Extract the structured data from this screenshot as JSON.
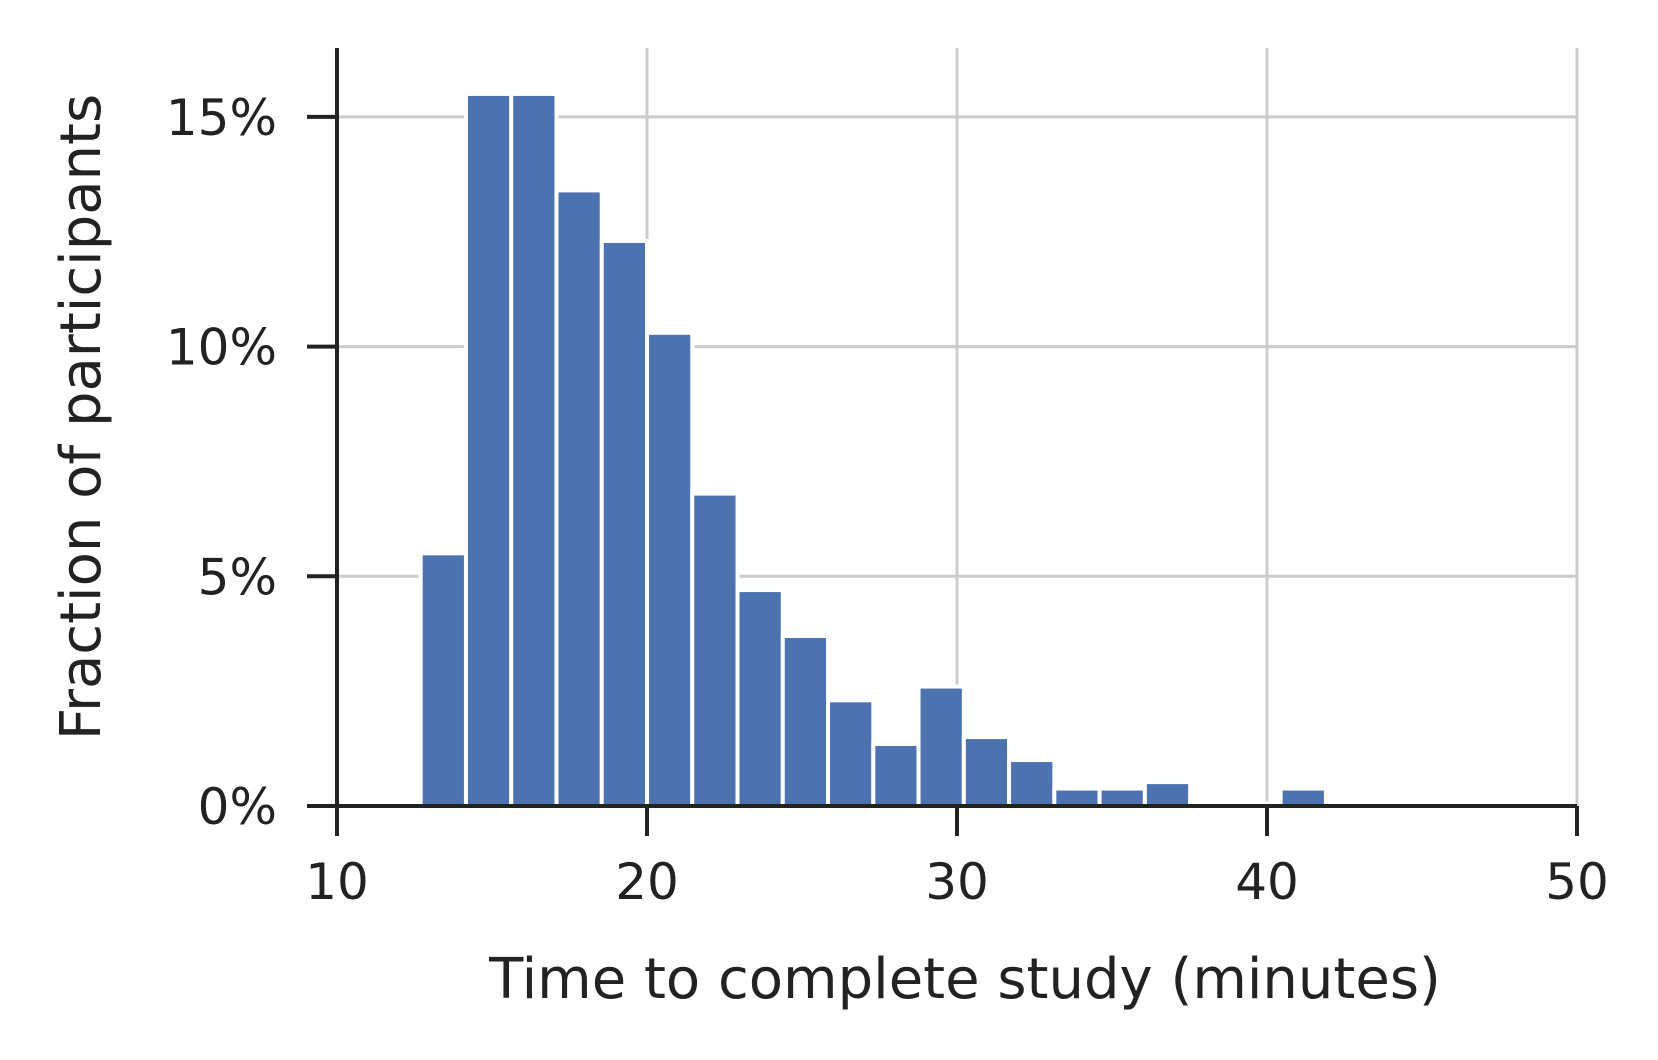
{
  "chart_data": {
    "type": "bar",
    "title": "",
    "xlabel": "Time to complete study (minutes)",
    "ylabel": "Fraction of participants",
    "xlim": [
      10,
      50
    ],
    "ylim": [
      0,
      16.5
    ],
    "xticks": [
      10,
      20,
      30,
      40,
      50
    ],
    "xtick_labels": [
      "10",
      "20",
      "30",
      "40",
      "50"
    ],
    "yticks": [
      0,
      5,
      10,
      15
    ],
    "ytick_labels": [
      "0%",
      "5%",
      "10%",
      "15%"
    ],
    "grid": true,
    "bin_width": 1.46,
    "series": [
      {
        "color": "#4c72b0",
        "bins": [
          {
            "x_start": 12.7,
            "x_end": 14.16,
            "value": 5.5
          },
          {
            "x_start": 14.16,
            "x_end": 15.62,
            "value": 15.5
          },
          {
            "x_start": 15.62,
            "x_end": 17.08,
            "value": 15.5
          },
          {
            "x_start": 17.08,
            "x_end": 18.54,
            "value": 13.4
          },
          {
            "x_start": 18.54,
            "x_end": 20.0,
            "value": 12.3
          },
          {
            "x_start": 20.0,
            "x_end": 21.46,
            "value": 10.3
          },
          {
            "x_start": 21.46,
            "x_end": 22.92,
            "value": 6.8
          },
          {
            "x_start": 22.92,
            "x_end": 24.38,
            "value": 4.7
          },
          {
            "x_start": 24.38,
            "x_end": 25.84,
            "value": 3.7
          },
          {
            "x_start": 25.84,
            "x_end": 27.3,
            "value": 2.3
          },
          {
            "x_start": 27.3,
            "x_end": 28.76,
            "value": 1.35
          },
          {
            "x_start": 28.76,
            "x_end": 30.22,
            "value": 2.6
          },
          {
            "x_start": 30.22,
            "x_end": 31.68,
            "value": 1.5
          },
          {
            "x_start": 31.68,
            "x_end": 33.14,
            "value": 1.0
          },
          {
            "x_start": 33.14,
            "x_end": 34.6,
            "value": 0.38
          },
          {
            "x_start": 34.6,
            "x_end": 36.06,
            "value": 0.38
          },
          {
            "x_start": 36.06,
            "x_end": 37.52,
            "value": 0.52
          },
          {
            "x_start": 37.52,
            "x_end": 38.98,
            "value": 0.06
          },
          {
            "x_start": 38.98,
            "x_end": 40.44,
            "value": 0.06
          },
          {
            "x_start": 40.44,
            "x_end": 41.9,
            "value": 0.38
          }
        ]
      }
    ]
  },
  "colors": {
    "bar": "#4c72b0",
    "grid": "#cccccc",
    "axis": "#222222",
    "text": "#222222"
  }
}
